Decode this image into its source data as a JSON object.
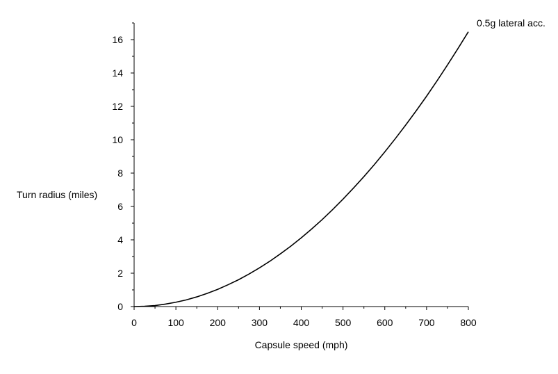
{
  "chart_data": {
    "type": "line",
    "title": "",
    "xlabel": "Capsule speed (mph)",
    "ylabel": "Turn radius (miles)",
    "xlim": [
      0,
      800
    ],
    "ylim": [
      0,
      17
    ],
    "xticks": [
      0,
      100,
      200,
      300,
      400,
      500,
      600,
      700,
      800
    ],
    "yticks": [
      0,
      2,
      4,
      6,
      8,
      10,
      12,
      14,
      16
    ],
    "grid": false,
    "legend": "none",
    "series": [
      {
        "name": "0.5g lateral acc.",
        "color": "#000000",
        "x": [
          0,
          25,
          50,
          75,
          100,
          125,
          150,
          175,
          200,
          225,
          250,
          275,
          300,
          325,
          350,
          375,
          400,
          425,
          450,
          475,
          500,
          525,
          550,
          575,
          600,
          625,
          650,
          675,
          700,
          725,
          750,
          775,
          800
        ],
        "y": [
          0,
          0.02,
          0.06,
          0.15,
          0.26,
          0.4,
          0.58,
          0.79,
          1.03,
          1.31,
          1.61,
          1.95,
          2.32,
          2.72,
          3.16,
          3.62,
          4.12,
          4.65,
          5.21,
          5.81,
          6.44,
          7.1,
          7.79,
          8.51,
          9.27,
          10.06,
          10.88,
          11.73,
          12.61,
          13.53,
          14.48,
          15.46,
          16.47
        ]
      }
    ]
  }
}
